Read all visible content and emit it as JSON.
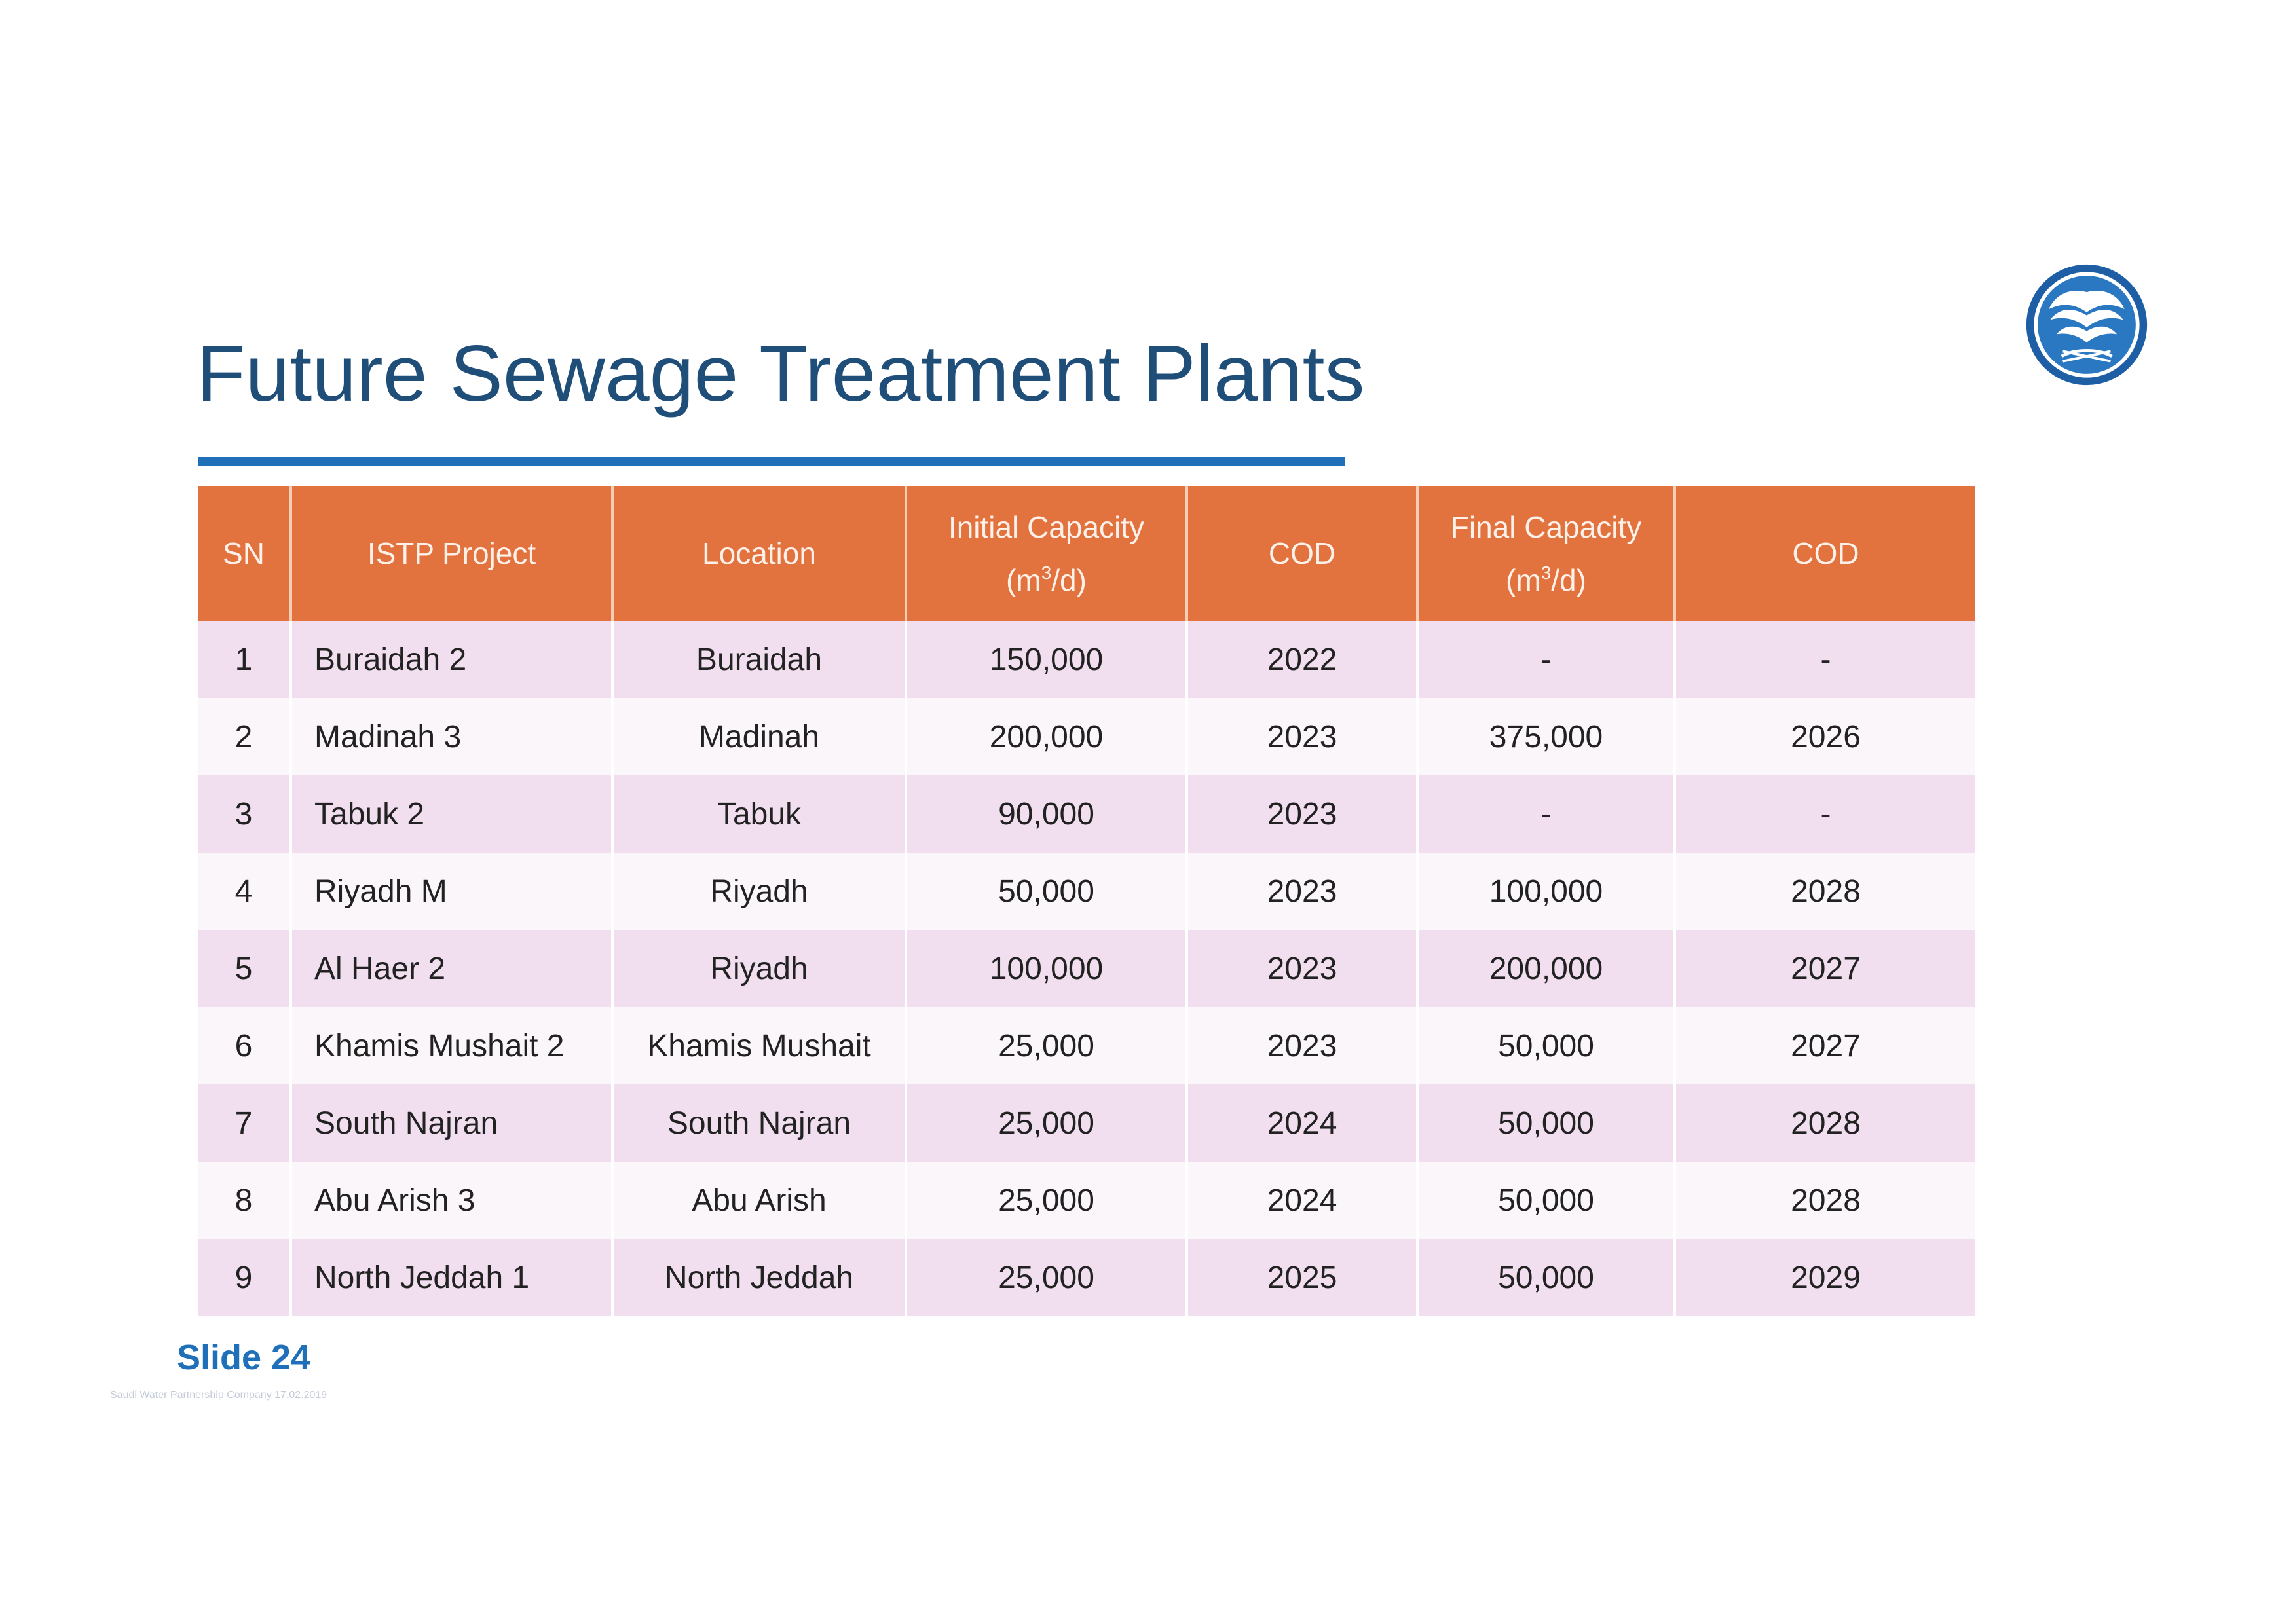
{
  "slide": {
    "title": "Future Sewage Treatment Plants",
    "label": "Slide 24",
    "footer": "Saudi Water Partnership Company  17.02.2019"
  },
  "colors": {
    "title": "#1f4e79",
    "accent": "#1f6fb9",
    "header_bg": "#e2733f",
    "row_odd": "#f1dff0",
    "row_even": "#fbf6fa"
  },
  "logo": {
    "icon": "swpc-logo-icon"
  },
  "table": {
    "headers": {
      "sn": "SN",
      "project": "ISTP Project",
      "location": "Location",
      "initial_line1": "Initial Capacity",
      "initial_unit_a": "(m",
      "initial_unit_sup": "3",
      "initial_unit_b": "/d)",
      "cod1": "COD",
      "final_line1": "Final Capacity",
      "final_unit_a": "(m",
      "final_unit_sup": "3",
      "final_unit_b": "/d)",
      "cod2": "COD"
    },
    "rows": [
      {
        "sn": "1",
        "project": "Buraidah 2",
        "location": "Buraidah",
        "initial": "150,000",
        "cod": "2022",
        "final": "-",
        "final_cod": "-"
      },
      {
        "sn": "2",
        "project": "Madinah 3",
        "location": "Madinah",
        "initial": "200,000",
        "cod": "2023",
        "final": "375,000",
        "final_cod": "2026"
      },
      {
        "sn": "3",
        "project": "Tabuk 2",
        "location": "Tabuk",
        "initial": "90,000",
        "cod": "2023",
        "final": "-",
        "final_cod": "-"
      },
      {
        "sn": "4",
        "project": "Riyadh M",
        "location": "Riyadh",
        "initial": "50,000",
        "cod": "2023",
        "final": "100,000",
        "final_cod": "2028"
      },
      {
        "sn": "5",
        "project": "Al Haer 2",
        "location": "Riyadh",
        "initial": "100,000",
        "cod": "2023",
        "final": "200,000",
        "final_cod": "2027"
      },
      {
        "sn": "6",
        "project": "Khamis Mushait 2",
        "location": "Khamis Mushait",
        "initial": "25,000",
        "cod": "2023",
        "final": "50,000",
        "final_cod": "2027"
      },
      {
        "sn": "7",
        "project": "South Najran",
        "location": "South Najran",
        "initial": "25,000",
        "cod": "2024",
        "final": "50,000",
        "final_cod": "2028"
      },
      {
        "sn": "8",
        "project": "Abu Arish 3",
        "location": "Abu Arish",
        "initial": "25,000",
        "cod": "2024",
        "final": "50,000",
        "final_cod": "2028"
      },
      {
        "sn": "9",
        "project": "North Jeddah 1",
        "location": "North Jeddah",
        "initial": "25,000",
        "cod": "2025",
        "final": "50,000",
        "final_cod": "2029"
      }
    ]
  }
}
